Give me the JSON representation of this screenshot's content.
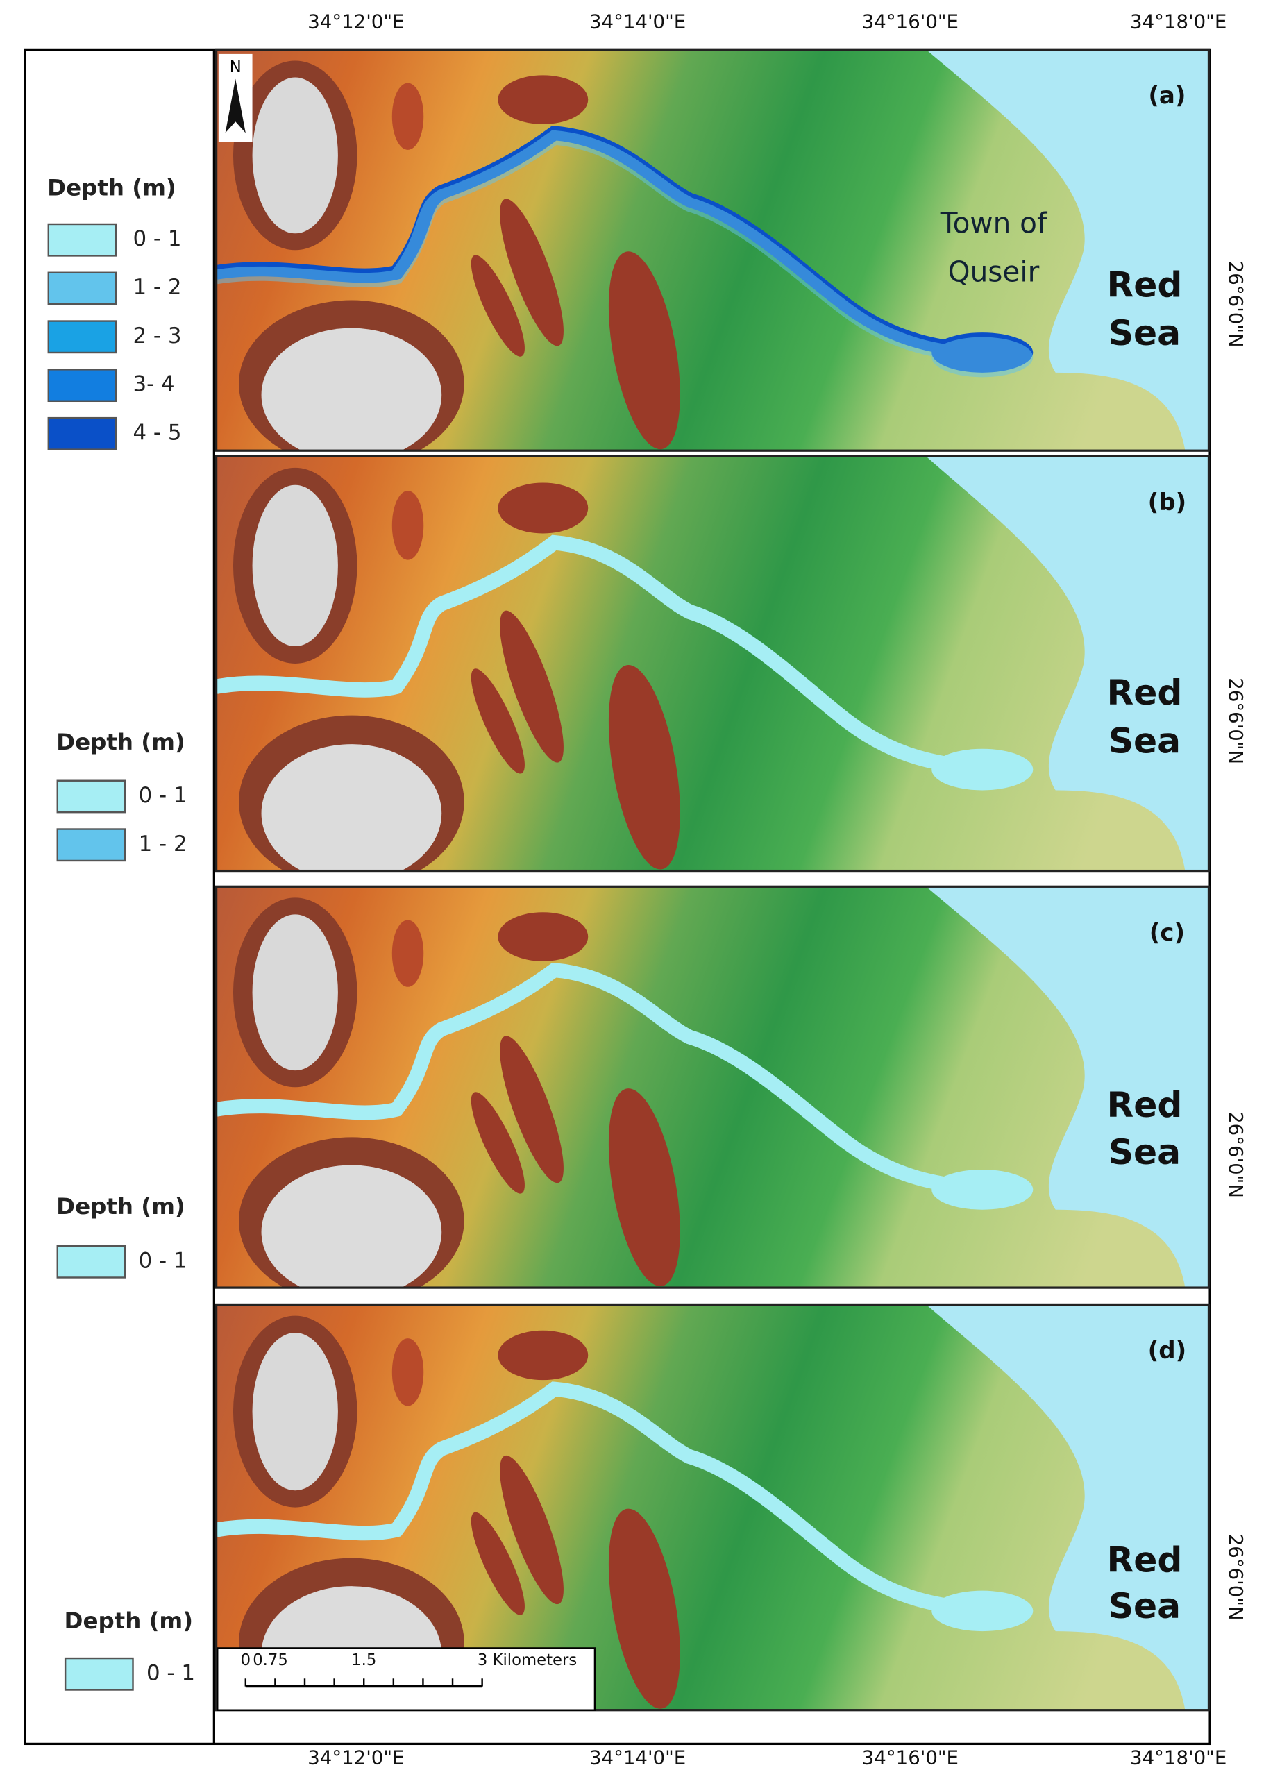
{
  "top_axis_labels": [
    "34°12'0\"E",
    "34°14'0\"E",
    "34°16'0\"E",
    "34°18'0\"E"
  ],
  "bottom_axis_labels": [
    "34°12'0\"E",
    "34°14'0\"E",
    "34°16'0\"E",
    "34°18'0\"E"
  ],
  "right_axis_labels": [
    "26°6'0\"N",
    "26°6'0\"N",
    "26°6'0\"N",
    "26°6'0\"N"
  ],
  "north_label": "N",
  "panels": [
    {
      "label": "(a)",
      "sea_label": [
        "Red",
        "Sea"
      ],
      "town_label": [
        "Town of",
        "Quseir"
      ],
      "legend": {
        "title": "Depth (m)",
        "entries": [
          {
            "label": "0 - 1",
            "color": "#a6eef4"
          },
          {
            "label": "1 - 2",
            "color": "#62c4ec"
          },
          {
            "label": "2 - 3",
            "color": "#1aa2e4"
          },
          {
            "label": "3- 4",
            "color": "#127ee0"
          },
          {
            "label": "4 - 5",
            "color": "#0a50c8"
          }
        ]
      }
    },
    {
      "label": "(b)",
      "sea_label": [
        "Red",
        "Sea"
      ],
      "legend": {
        "title": "Depth (m)",
        "entries": [
          {
            "label": "0 - 1",
            "color": "#a6eef4"
          },
          {
            "label": "1 - 2",
            "color": "#62c4ec"
          }
        ]
      }
    },
    {
      "label": "(c)",
      "sea_label": [
        "Red",
        "Sea"
      ],
      "legend": {
        "title": "Depth (m)",
        "entries": [
          {
            "label": "0 - 1",
            "color": "#a6eef4"
          }
        ]
      }
    },
    {
      "label": "(d)",
      "sea_label": [
        "Red",
        "Sea"
      ],
      "legend": {
        "title": "Depth (m)",
        "entries": [
          {
            "label": "0 - 1",
            "color": "#a6eef4"
          }
        ]
      }
    }
  ],
  "scale_bar": {
    "labels": [
      "0",
      "0.75",
      "1.5",
      "3 Kilometers"
    ]
  }
}
